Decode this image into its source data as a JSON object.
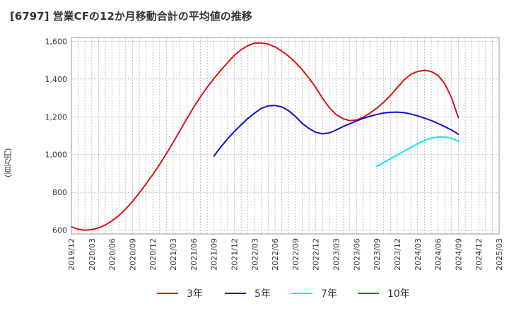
{
  "chart_data": {
    "type": "line",
    "title": "[6797]  営業CFの12か月移動合計の平均値の推移",
    "ylabel": "(百万円)",
    "xlabel": "",
    "ylim": [
      580,
      1620
    ],
    "yticks": [
      600,
      800,
      1000,
      1200,
      1400,
      1600
    ],
    "ytick_labels": [
      "600",
      "800",
      "1,000",
      "1,200",
      "1,400",
      "1,600"
    ],
    "xticks": [
      "2019/12",
      "2020/03",
      "2020/06",
      "2020/09",
      "2020/12",
      "2021/03",
      "2021/06",
      "2021/09",
      "2021/12",
      "2022/03",
      "2022/06",
      "2022/09",
      "2022/12",
      "2023/03",
      "2023/06",
      "2023/09",
      "2023/12",
      "2024/03",
      "2024/06",
      "2024/09",
      "2024/12",
      "2025/03"
    ],
    "x_range": [
      "2019/12",
      "2025/03"
    ],
    "grid": true,
    "legend_position": "bottom",
    "series": [
      {
        "name": "3年",
        "color": "#dd1111",
        "x": [
          "2019/12",
          "2020/01",
          "2020/02",
          "2020/03",
          "2020/04",
          "2020/05",
          "2020/06",
          "2020/07",
          "2020/08",
          "2020/09",
          "2020/10",
          "2020/11",
          "2020/12",
          "2021/01",
          "2021/02",
          "2021/03",
          "2021/04",
          "2021/05",
          "2021/06",
          "2021/07",
          "2021/08",
          "2021/09",
          "2021/10",
          "2021/11",
          "2021/12",
          "2022/01",
          "2022/02",
          "2022/03",
          "2022/04",
          "2022/05",
          "2022/06",
          "2022/07",
          "2022/08",
          "2022/09",
          "2022/10",
          "2022/11",
          "2022/12",
          "2023/01",
          "2023/02",
          "2023/03",
          "2023/04",
          "2023/05",
          "2023/06",
          "2023/07",
          "2023/08",
          "2023/09",
          "2023/10",
          "2023/11",
          "2023/12",
          "2024/01",
          "2024/02",
          "2024/03",
          "2024/04",
          "2024/05",
          "2024/06",
          "2024/07",
          "2024/08",
          "2024/09"
        ],
        "values": [
          618,
          605,
          600,
          603,
          612,
          628,
          650,
          678,
          712,
          752,
          797,
          845,
          895,
          948,
          1005,
          1065,
          1128,
          1190,
          1250,
          1305,
          1357,
          1403,
          1446,
          1487,
          1525,
          1555,
          1577,
          1590,
          1591,
          1585,
          1570,
          1548,
          1521,
          1488,
          1449,
          1405,
          1355,
          1298,
          1248,
          1212,
          1190,
          1180,
          1183,
          1198,
          1220,
          1246,
          1277,
          1313,
          1355,
          1395,
          1425,
          1440,
          1446,
          1440,
          1420,
          1375,
          1300,
          1195
        ]
      },
      {
        "name": "5年",
        "color": "#1111cc",
        "x": [
          "2021/09",
          "2021/10",
          "2021/11",
          "2021/12",
          "2022/01",
          "2022/02",
          "2022/03",
          "2022/04",
          "2022/05",
          "2022/06",
          "2022/07",
          "2022/08",
          "2022/09",
          "2022/10",
          "2022/11",
          "2022/12",
          "2023/01",
          "2023/02",
          "2023/03",
          "2023/04",
          "2023/05",
          "2023/06",
          "2023/07",
          "2023/08",
          "2023/09",
          "2023/10",
          "2023/11",
          "2023/12",
          "2024/01",
          "2024/02",
          "2024/03",
          "2024/04",
          "2024/05",
          "2024/06",
          "2024/07",
          "2024/08",
          "2024/09"
        ],
        "values": [
          993,
          1040,
          1083,
          1122,
          1158,
          1192,
          1220,
          1245,
          1258,
          1260,
          1252,
          1232,
          1202,
          1165,
          1138,
          1118,
          1110,
          1115,
          1130,
          1148,
          1163,
          1178,
          1192,
          1203,
          1213,
          1220,
          1224,
          1225,
          1222,
          1215,
          1205,
          1193,
          1180,
          1165,
          1148,
          1130,
          1108
        ]
      },
      {
        "name": "7年",
        "color": "#00eeee",
        "x": [
          "2023/09",
          "2023/10",
          "2023/11",
          "2023/12",
          "2024/01",
          "2024/02",
          "2024/03",
          "2024/04",
          "2024/05",
          "2024/06",
          "2024/07",
          "2024/08",
          "2024/09"
        ],
        "values": [
          938,
          958,
          978,
          998,
          1018,
          1038,
          1058,
          1075,
          1087,
          1093,
          1093,
          1087,
          1070
        ]
      },
      {
        "name": "10年",
        "color": "#228822",
        "x": [],
        "values": []
      }
    ]
  }
}
